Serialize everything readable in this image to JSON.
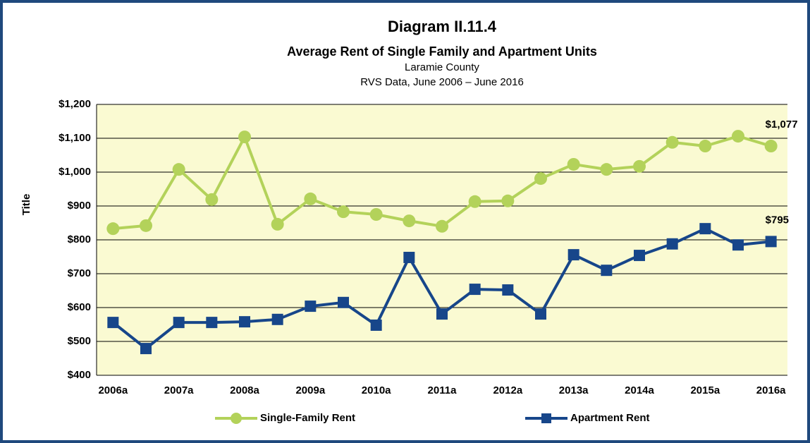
{
  "chart_data": {
    "type": "line",
    "title": "Diagram II.11.4",
    "subtitle": "Average Rent of Single Family and Apartment Units",
    "subtitle2": "Laramie County",
    "subtitle3": "RVS Data, June 2006 – June 2016",
    "y_label": "Title",
    "categories": [
      "2006a",
      null,
      "2007a",
      null,
      "2008a",
      null,
      "2009a",
      null,
      "2010a",
      null,
      "2011a",
      null,
      "2012a",
      null,
      "2013a",
      null,
      "2014a",
      null,
      "2015a",
      null,
      "2016a"
    ],
    "series": [
      {
        "name": "Single-Family Rent",
        "color": "#b3d25a",
        "marker": "circle",
        "values": [
          833,
          842,
          1008,
          919,
          1104,
          846,
          921,
          883,
          875,
          856,
          840,
          913,
          915,
          981,
          1023,
          1008,
          1017,
          1088,
          1077,
          1106,
          1077
        ],
        "value_labels": [
          null,
          null,
          null,
          null,
          null,
          null,
          null,
          null,
          null,
          null,
          null,
          null,
          null,
          null,
          null,
          null,
          null,
          null,
          null,
          null,
          "$1,077"
        ]
      },
      {
        "name": "Apartment Rent",
        "color": "#17468a",
        "marker": "square",
        "values": [
          556,
          479,
          556,
          556,
          558,
          565,
          604,
          615,
          548,
          748,
          581,
          654,
          652,
          581,
          756,
          710,
          754,
          788,
          833,
          785,
          795
        ],
        "value_labels": [
          null,
          null,
          null,
          null,
          null,
          null,
          null,
          null,
          null,
          null,
          null,
          null,
          null,
          null,
          null,
          null,
          null,
          null,
          null,
          null,
          "$795"
        ]
      }
    ],
    "ylim": [
      400,
      1200
    ],
    "yticks": [
      {
        "value": 400,
        "label": "$400"
      },
      {
        "value": 500,
        "label": "$500"
      },
      {
        "value": 600,
        "label": "$600"
      },
      {
        "value": 700,
        "label": "$700"
      },
      {
        "value": 800,
        "label": "$800"
      },
      {
        "value": 900,
        "label": "$900"
      },
      {
        "value": 1000,
        "label": "$1,000"
      },
      {
        "value": 1100,
        "label": "$1,100"
      },
      {
        "value": 1200,
        "label": "$1,200"
      }
    ],
    "grid": true,
    "legend": "bottom"
  }
}
